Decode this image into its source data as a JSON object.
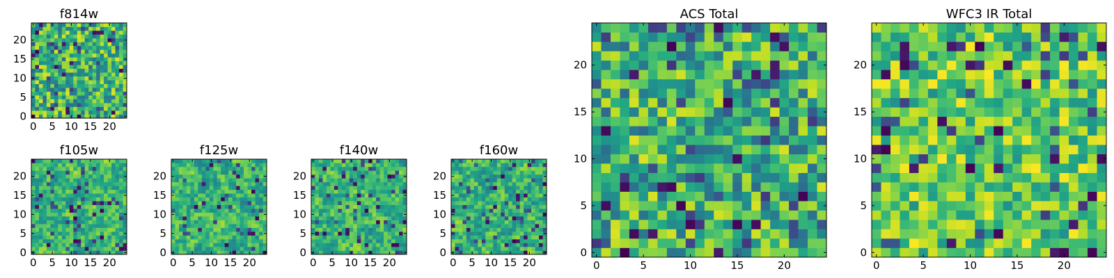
{
  "figure": {
    "description_free": true
  },
  "chart_data": [
    {
      "type": "heatmap",
      "title": "f814w",
      "grid_size": 25,
      "xlim": [
        -0.5,
        24.5
      ],
      "ylim": [
        -0.5,
        24.5
      ],
      "xticks": [
        0,
        5,
        10,
        15,
        20
      ],
      "yticks": [
        0,
        5,
        10,
        15,
        20
      ],
      "colormap": "viridis",
      "seed": 814,
      "noise": "fine"
    },
    {
      "type": "heatmap",
      "title": "f105w",
      "grid_size": 25,
      "xlim": [
        -0.5,
        24.5
      ],
      "ylim": [
        -0.5,
        24.5
      ],
      "xticks": [
        0,
        5,
        10,
        15,
        20
      ],
      "yticks": [
        0,
        5,
        10,
        15,
        20
      ],
      "colormap": "viridis",
      "seed": 105,
      "noise": "smooth"
    },
    {
      "type": "heatmap",
      "title": "f125w",
      "grid_size": 25,
      "xlim": [
        -0.5,
        24.5
      ],
      "ylim": [
        -0.5,
        24.5
      ],
      "xticks": [
        0,
        5,
        10,
        15,
        20
      ],
      "yticks": [
        0,
        5,
        10,
        15,
        20
      ],
      "colormap": "viridis",
      "seed": 125,
      "noise": "smooth"
    },
    {
      "type": "heatmap",
      "title": "f140w",
      "grid_size": 25,
      "xlim": [
        -0.5,
        24.5
      ],
      "ylim": [
        -0.5,
        24.5
      ],
      "xticks": [
        0,
        5,
        10,
        15,
        20
      ],
      "yticks": [
        0,
        5,
        10,
        15,
        20
      ],
      "colormap": "viridis",
      "seed": 140,
      "noise": "smooth"
    },
    {
      "type": "heatmap",
      "title": "f160w",
      "grid_size": 25,
      "xlim": [
        -0.5,
        24.5
      ],
      "ylim": [
        -0.5,
        24.5
      ],
      "xticks": [
        0,
        5,
        10,
        15,
        20
      ],
      "yticks": [
        0,
        5,
        10,
        15,
        20
      ],
      "colormap": "viridis",
      "seed": 160,
      "noise": "smooth"
    },
    {
      "type": "heatmap",
      "title": "ACS Total",
      "grid_size": 25,
      "xlim": [
        -0.5,
        24.5
      ],
      "ylim": [
        -0.5,
        24.5
      ],
      "xticks": [
        0,
        5,
        10,
        15,
        20
      ],
      "yticks": [
        0,
        5,
        10,
        15,
        20
      ],
      "colormap": "viridis",
      "seed": 7,
      "noise": "fine"
    },
    {
      "type": "heatmap",
      "title": "WFC3 IR Total",
      "grid_size": 25,
      "xlim": [
        -0.5,
        24.5
      ],
      "ylim": [
        -0.5,
        24.5
      ],
      "xticks": [
        0,
        5,
        10,
        15,
        20
      ],
      "yticks": [
        0,
        5,
        10,
        15,
        20
      ],
      "colormap": "viridis",
      "seed": 3,
      "noise": "bright"
    }
  ]
}
